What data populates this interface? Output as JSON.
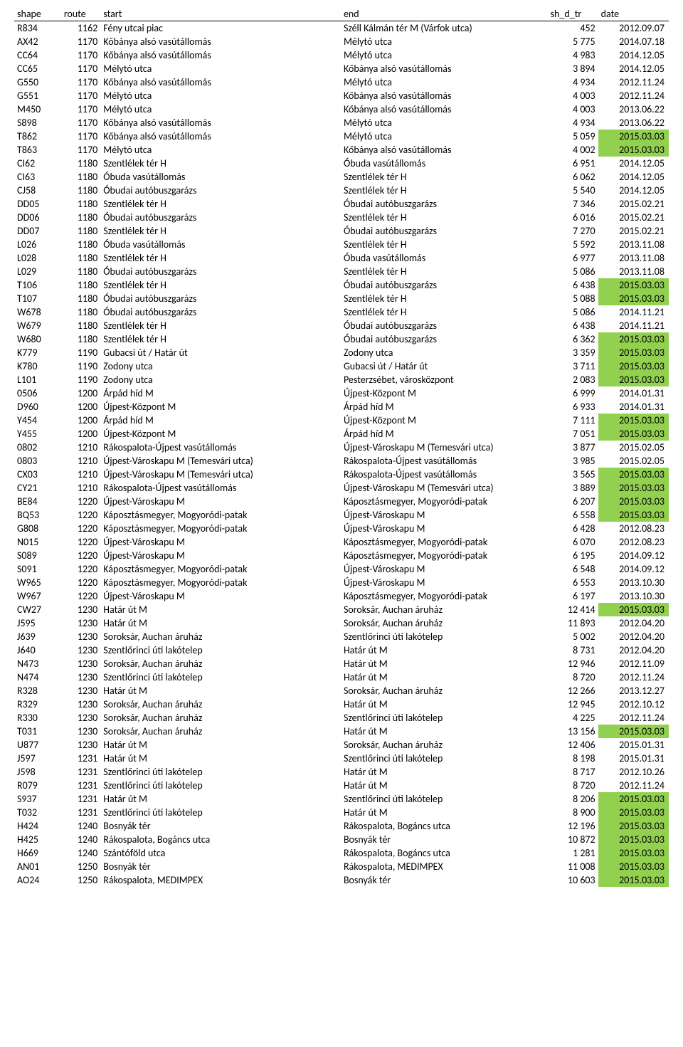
{
  "headers": {
    "shape": "shape",
    "route": "route",
    "start": "start",
    "end": "end",
    "sh_d_tr": "sh_d_tr",
    "date": "date"
  },
  "highlight_color": "#92d050",
  "rows": [
    {
      "shape": "R834",
      "route": "1162",
      "start": "Fény utcai piac",
      "end": "Széll Kálmán tér M (Várfok utca)",
      "sh": "452",
      "date": "2012.09.07",
      "hl": false
    },
    {
      "shape": "AX42",
      "route": "1170",
      "start": "Kőbánya alsó vasútállomás",
      "end": "Mélytó utca",
      "sh": "5 775",
      "date": "2014.07.18",
      "hl": false
    },
    {
      "shape": "CC64",
      "route": "1170",
      "start": "Kőbánya alsó vasútállomás",
      "end": "Mélytó utca",
      "sh": "4 983",
      "date": "2014.12.05",
      "hl": false
    },
    {
      "shape": "CC65",
      "route": "1170",
      "start": "Mélytó utca",
      "end": "Kőbánya alsó vasútállomás",
      "sh": "3 894",
      "date": "2014.12.05",
      "hl": false
    },
    {
      "shape": "G550",
      "route": "1170",
      "start": "Kőbánya alsó vasútállomás",
      "end": "Mélytó utca",
      "sh": "4 934",
      "date": "2012.11.24",
      "hl": false
    },
    {
      "shape": "G551",
      "route": "1170",
      "start": "Mélytó utca",
      "end": "Kőbánya alsó vasútállomás",
      "sh": "4 003",
      "date": "2012.11.24",
      "hl": false
    },
    {
      "shape": "M450",
      "route": "1170",
      "start": "Mélytó utca",
      "end": "Kőbánya alsó vasútállomás",
      "sh": "4 003",
      "date": "2013.06.22",
      "hl": false
    },
    {
      "shape": "S898",
      "route": "1170",
      "start": "Kőbánya alsó vasútállomás",
      "end": "Mélytó utca",
      "sh": "4 934",
      "date": "2013.06.22",
      "hl": false
    },
    {
      "shape": "T862",
      "route": "1170",
      "start": "Kőbánya alsó vasútállomás",
      "end": "Mélytó utca",
      "sh": "5 059",
      "date": "2015.03.03",
      "hl": true
    },
    {
      "shape": "T863",
      "route": "1170",
      "start": "Mélytó utca",
      "end": "Kőbánya alsó vasútállomás",
      "sh": "4 002",
      "date": "2015.03.03",
      "hl": true
    },
    {
      "shape": "CI62",
      "route": "1180",
      "start": "Szentlélek tér H",
      "end": "Óbuda vasútállomás",
      "sh": "6 951",
      "date": "2014.12.05",
      "hl": false
    },
    {
      "shape": "CI63",
      "route": "1180",
      "start": "Óbuda vasútállomás",
      "end": "Szentlélek tér H",
      "sh": "6 062",
      "date": "2014.12.05",
      "hl": false
    },
    {
      "shape": "CJ58",
      "route": "1180",
      "start": "Óbudai autóbuszgarázs",
      "end": "Szentlélek tér H",
      "sh": "5 540",
      "date": "2014.12.05",
      "hl": false
    },
    {
      "shape": "DD05",
      "route": "1180",
      "start": "Szentlélek tér H",
      "end": "Óbudai autóbuszgarázs",
      "sh": "7 346",
      "date": "2015.02.21",
      "hl": false
    },
    {
      "shape": "DD06",
      "route": "1180",
      "start": "Óbudai autóbuszgarázs",
      "end": "Szentlélek tér H",
      "sh": "6 016",
      "date": "2015.02.21",
      "hl": false
    },
    {
      "shape": "DD07",
      "route": "1180",
      "start": "Szentlélek tér H",
      "end": "Óbudai autóbuszgarázs",
      "sh": "7 270",
      "date": "2015.02.21",
      "hl": false
    },
    {
      "shape": "L026",
      "route": "1180",
      "start": "Óbuda vasútállomás",
      "end": "Szentlélek tér H",
      "sh": "5 592",
      "date": "2013.11.08",
      "hl": false
    },
    {
      "shape": "L028",
      "route": "1180",
      "start": "Szentlélek tér H",
      "end": "Óbuda vasútállomás",
      "sh": "6 977",
      "date": "2013.11.08",
      "hl": false
    },
    {
      "shape": "L029",
      "route": "1180",
      "start": "Óbudai autóbuszgarázs",
      "end": "Szentlélek tér H",
      "sh": "5 086",
      "date": "2013.11.08",
      "hl": false
    },
    {
      "shape": "T106",
      "route": "1180",
      "start": "Szentlélek tér H",
      "end": "Óbudai autóbuszgarázs",
      "sh": "6 438",
      "date": "2015.03.03",
      "hl": true
    },
    {
      "shape": "T107",
      "route": "1180",
      "start": "Óbudai autóbuszgarázs",
      "end": "Szentlélek tér H",
      "sh": "5 088",
      "date": "2015.03.03",
      "hl": true
    },
    {
      "shape": "W678",
      "route": "1180",
      "start": "Óbudai autóbuszgarázs",
      "end": "Szentlélek tér H",
      "sh": "5 086",
      "date": "2014.11.21",
      "hl": false
    },
    {
      "shape": "W679",
      "route": "1180",
      "start": "Szentlélek tér H",
      "end": "Óbudai autóbuszgarázs",
      "sh": "6 438",
      "date": "2014.11.21",
      "hl": false
    },
    {
      "shape": "W680",
      "route": "1180",
      "start": "Szentlélek tér H",
      "end": "Óbudai autóbuszgarázs",
      "sh": "6 362",
      "date": "2015.03.03",
      "hl": true
    },
    {
      "shape": "K779",
      "route": "1190",
      "start": "Gubacsi út / Határ út",
      "end": "Zodony utca",
      "sh": "3 359",
      "date": "2015.03.03",
      "hl": true
    },
    {
      "shape": "K780",
      "route": "1190",
      "start": "Zodony utca",
      "end": "Gubacsi út / Határ út",
      "sh": "3 711",
      "date": "2015.03.03",
      "hl": true
    },
    {
      "shape": "L101",
      "route": "1190",
      "start": "Zodony utca",
      "end": "Pesterzsébet, városközpont",
      "sh": "2 083",
      "date": "2015.03.03",
      "hl": true
    },
    {
      "shape": "0506",
      "route": "1200",
      "start": "Árpád híd M",
      "end": "Újpest-Központ M",
      "sh": "6 999",
      "date": "2014.01.31",
      "hl": false
    },
    {
      "shape": "D960",
      "route": "1200",
      "start": "Újpest-Központ M",
      "end": "Árpád híd M",
      "sh": "6 933",
      "date": "2014.01.31",
      "hl": false
    },
    {
      "shape": "Y454",
      "route": "1200",
      "start": "Árpád híd M",
      "end": "Újpest-Központ M",
      "sh": "7 111",
      "date": "2015.03.03",
      "hl": true
    },
    {
      "shape": "Y455",
      "route": "1200",
      "start": "Újpest-Központ M",
      "end": "Árpád híd M",
      "sh": "7 051",
      "date": "2015.03.03",
      "hl": true
    },
    {
      "shape": "0802",
      "route": "1210",
      "start": "Rákospalota-Újpest vasútállomás",
      "end": "Újpest-Városkapu M (Temesvári utca)",
      "sh": "3 877",
      "date": "2015.02.05",
      "hl": false
    },
    {
      "shape": "0803",
      "route": "1210",
      "start": "Újpest-Városkapu M (Temesvári utca)",
      "end": "Rákospalota-Újpest vasútállomás",
      "sh": "3 985",
      "date": "2015.02.05",
      "hl": false
    },
    {
      "shape": "CX03",
      "route": "1210",
      "start": "Újpest-Városkapu M (Temesvári utca)",
      "end": "Rákospalota-Újpest vasútállomás",
      "sh": "3 565",
      "date": "2015.03.03",
      "hl": true
    },
    {
      "shape": "CY21",
      "route": "1210",
      "start": "Rákospalota-Újpest vasútállomás",
      "end": "Újpest-Városkapu M (Temesvári utca)",
      "sh": "3 889",
      "date": "2015.03.03",
      "hl": true
    },
    {
      "shape": "BE84",
      "route": "1220",
      "start": "Újpest-Városkapu M",
      "end": "Káposztásmegyer, Mogyoródi-patak",
      "sh": "6 207",
      "date": "2015.03.03",
      "hl": true
    },
    {
      "shape": "BQ53",
      "route": "1220",
      "start": "Káposztásmegyer, Mogyoródi-patak",
      "end": "Újpest-Városkapu M",
      "sh": "6 558",
      "date": "2015.03.03",
      "hl": true
    },
    {
      "shape": "G808",
      "route": "1220",
      "start": "Káposztásmegyer, Mogyoródi-patak",
      "end": "Újpest-Városkapu M",
      "sh": "6 428",
      "date": "2012.08.23",
      "hl": false
    },
    {
      "shape": "N015",
      "route": "1220",
      "start": "Újpest-Városkapu M",
      "end": "Káposztásmegyer, Mogyoródi-patak",
      "sh": "6 070",
      "date": "2012.08.23",
      "hl": false
    },
    {
      "shape": "S089",
      "route": "1220",
      "start": "Újpest-Városkapu M",
      "end": "Káposztásmegyer, Mogyoródi-patak",
      "sh": "6 195",
      "date": "2014.09.12",
      "hl": false
    },
    {
      "shape": "S091",
      "route": "1220",
      "start": "Káposztásmegyer, Mogyoródi-patak",
      "end": "Újpest-Városkapu M",
      "sh": "6 548",
      "date": "2014.09.12",
      "hl": false
    },
    {
      "shape": "W965",
      "route": "1220",
      "start": "Káposztásmegyer, Mogyoródi-patak",
      "end": "Újpest-Városkapu M",
      "sh": "6 553",
      "date": "2013.10.30",
      "hl": false
    },
    {
      "shape": "W967",
      "route": "1220",
      "start": "Újpest-Városkapu M",
      "end": "Káposztásmegyer, Mogyoródi-patak",
      "sh": "6 197",
      "date": "2013.10.30",
      "hl": false
    },
    {
      "shape": "CW27",
      "route": "1230",
      "start": "Határ út M",
      "end": "Soroksár, Auchan áruház",
      "sh": "12 414",
      "date": "2015.03.03",
      "hl": true
    },
    {
      "shape": "J595",
      "route": "1230",
      "start": "Határ út M",
      "end": "Soroksár, Auchan áruház",
      "sh": "11 893",
      "date": "2012.04.20",
      "hl": false
    },
    {
      "shape": "J639",
      "route": "1230",
      "start": "Soroksár, Auchan áruház",
      "end": "Szentlőrinci úti lakótelep",
      "sh": "5 002",
      "date": "2012.04.20",
      "hl": false
    },
    {
      "shape": "J640",
      "route": "1230",
      "start": "Szentlőrinci úti lakótelep",
      "end": "Határ út M",
      "sh": "8 731",
      "date": "2012.04.20",
      "hl": false
    },
    {
      "shape": "N473",
      "route": "1230",
      "start": "Soroksár, Auchan áruház",
      "end": "Határ út M",
      "sh": "12 946",
      "date": "2012.11.09",
      "hl": false
    },
    {
      "shape": "N474",
      "route": "1230",
      "start": "Szentlőrinci úti lakótelep",
      "end": "Határ út M",
      "sh": "8 720",
      "date": "2012.11.24",
      "hl": false
    },
    {
      "shape": "R328",
      "route": "1230",
      "start": "Határ út M",
      "end": "Soroksár, Auchan áruház",
      "sh": "12 266",
      "date": "2013.12.27",
      "hl": false
    },
    {
      "shape": "R329",
      "route": "1230",
      "start": "Soroksár, Auchan áruház",
      "end": "Határ út M",
      "sh": "12 945",
      "date": "2012.10.12",
      "hl": false
    },
    {
      "shape": "R330",
      "route": "1230",
      "start": "Soroksár, Auchan áruház",
      "end": "Szentlőrinci úti lakótelep",
      "sh": "4 225",
      "date": "2012.11.24",
      "hl": false
    },
    {
      "shape": "T031",
      "route": "1230",
      "start": "Soroksár, Auchan áruház",
      "end": "Határ út M",
      "sh": "13 156",
      "date": "2015.03.03",
      "hl": true
    },
    {
      "shape": "U877",
      "route": "1230",
      "start": "Határ út M",
      "end": "Soroksár, Auchan áruház",
      "sh": "12 406",
      "date": "2015.01.31",
      "hl": false
    },
    {
      "shape": "J597",
      "route": "1231",
      "start": "Határ út M",
      "end": "Szentlőrinci úti lakótelep",
      "sh": "8 198",
      "date": "2015.01.31",
      "hl": false
    },
    {
      "shape": "J598",
      "route": "1231",
      "start": "Szentlőrinci úti lakótelep",
      "end": "Határ út M",
      "sh": "8 717",
      "date": "2012.10.26",
      "hl": false
    },
    {
      "shape": "R079",
      "route": "1231",
      "start": "Szentlőrinci úti lakótelep",
      "end": "Határ út M",
      "sh": "8 720",
      "date": "2012.11.24",
      "hl": false
    },
    {
      "shape": "S937",
      "route": "1231",
      "start": "Határ út M",
      "end": "Szentlőrinci úti lakótelep",
      "sh": "8 206",
      "date": "2015.03.03",
      "hl": true
    },
    {
      "shape": "T032",
      "route": "1231",
      "start": "Szentlőrinci úti lakótelep",
      "end": "Határ út M",
      "sh": "8 900",
      "date": "2015.03.03",
      "hl": true
    },
    {
      "shape": "H424",
      "route": "1240",
      "start": "Bosnyák tér",
      "end": "Rákospalota, Bogáncs utca",
      "sh": "12 196",
      "date": "2015.03.03",
      "hl": true
    },
    {
      "shape": "H425",
      "route": "1240",
      "start": "Rákospalota, Bogáncs utca",
      "end": "Bosnyák tér",
      "sh": "10 872",
      "date": "2015.03.03",
      "hl": true
    },
    {
      "shape": "H669",
      "route": "1240",
      "start": "Szántóföld utca",
      "end": "Rákospalota, Bogáncs utca",
      "sh": "1 281",
      "date": "2015.03.03",
      "hl": true
    },
    {
      "shape": "AN01",
      "route": "1250",
      "start": "Bosnyák tér",
      "end": "Rákospalota, MEDIMPEX",
      "sh": "11 008",
      "date": "2015.03.03",
      "hl": true
    },
    {
      "shape": "AO24",
      "route": "1250",
      "start": "Rákospalota, MEDIMPEX",
      "end": "Bosnyák tér",
      "sh": "10 603",
      "date": "2015.03.03",
      "hl": true
    }
  ]
}
